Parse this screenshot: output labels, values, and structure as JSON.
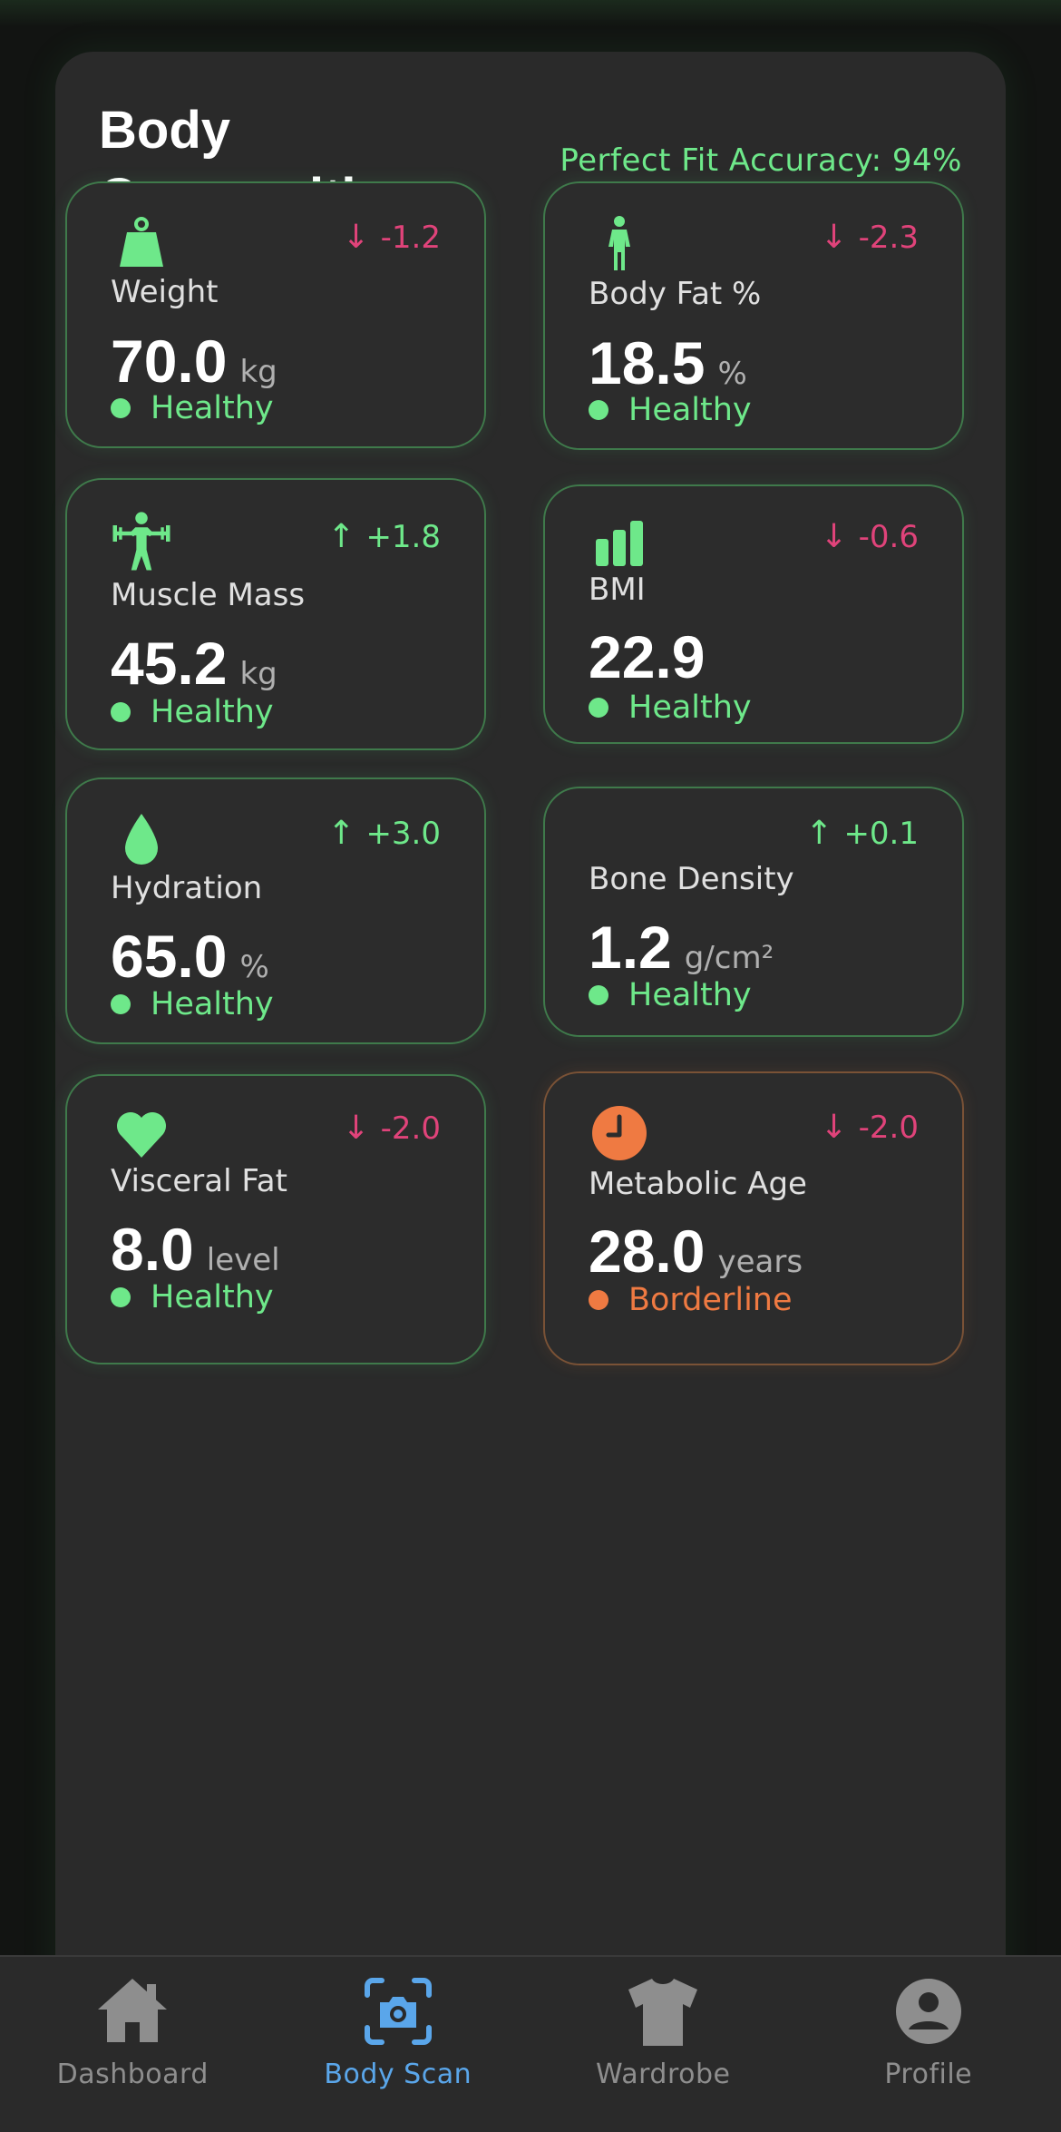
{
  "panel": {
    "title": "Body Composition",
    "accuracy": "Perfect Fit Accuracy: 94%"
  },
  "colors": {
    "healthy": "#6ee88a",
    "borderline": "#ef7a42",
    "decrease": "#e0437a",
    "increase": "#6ee88a",
    "nav_active": "#5aa6ea"
  },
  "metrics": [
    {
      "label": "Weight",
      "value": "70.0",
      "unit": "kg",
      "change": "-1.2",
      "direction": "down",
      "status": "Healthy",
      "icon": "weight-icon"
    },
    {
      "label": "Body Fat %",
      "value": "18.5",
      "unit": "%",
      "change": "-2.3",
      "direction": "down",
      "status": "Healthy",
      "icon": "person-icon"
    },
    {
      "label": "Muscle Mass",
      "value": "45.2",
      "unit": "kg",
      "change": "+1.8",
      "direction": "up",
      "status": "Healthy",
      "icon": "weightlifter-icon"
    },
    {
      "label": "BMI",
      "value": "22.9",
      "unit": "",
      "change": "-0.6",
      "direction": "down",
      "status": "Healthy",
      "icon": "bar-chart-icon"
    },
    {
      "label": "Hydration",
      "value": "65.0",
      "unit": "%",
      "change": "+3.0",
      "direction": "up",
      "status": "Healthy",
      "icon": "droplet-icon"
    },
    {
      "label": "Bone Density",
      "value": "1.2",
      "unit": "g/cm²",
      "change": "+0.1",
      "direction": "up",
      "status": "Healthy",
      "icon": ""
    },
    {
      "label": "Visceral Fat",
      "value": "8.0",
      "unit": "level",
      "change": "-2.0",
      "direction": "down",
      "status": "Healthy",
      "icon": "heart-icon"
    },
    {
      "label": "Metabolic Age",
      "value": "28.0",
      "unit": "years",
      "change": "-2.0",
      "direction": "down",
      "status": "Borderline",
      "icon": "clock-icon"
    }
  ],
  "arrows": {
    "up": "↑",
    "down": "↓"
  },
  "nav": [
    {
      "label": "Dashboard",
      "icon": "home-icon",
      "active": false
    },
    {
      "label": "Body Scan",
      "icon": "camera-scan-icon",
      "active": true
    },
    {
      "label": "Wardrobe",
      "icon": "shirt-icon",
      "active": false
    },
    {
      "label": "Profile",
      "icon": "user-icon",
      "active": false
    }
  ]
}
